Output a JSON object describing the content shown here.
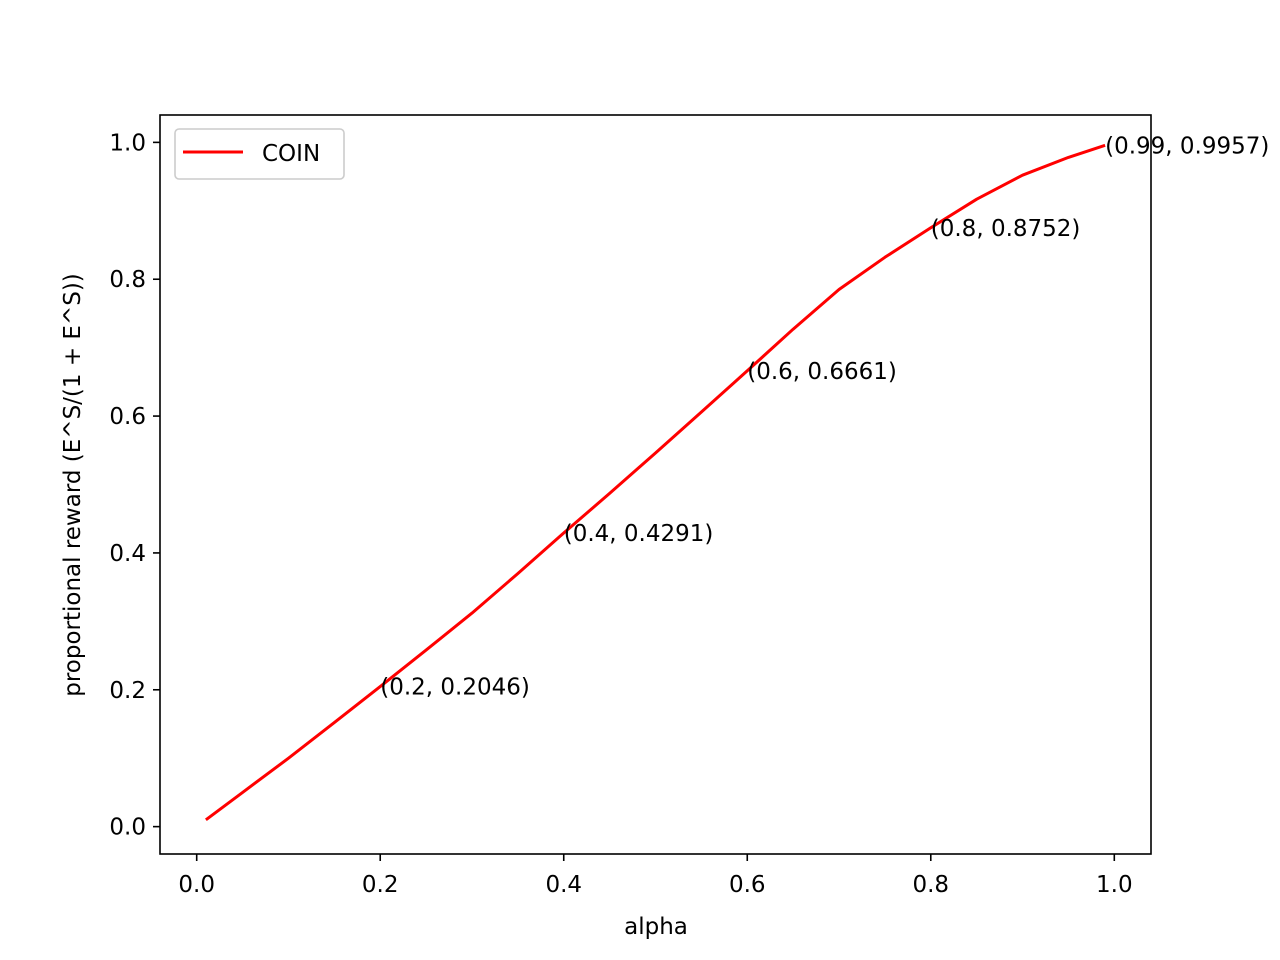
{
  "chart_data": {
    "type": "line",
    "title": "",
    "xlabel": "alpha",
    "ylabel": "proportional reward (E^S/(1 + E^S))",
    "xlim": [
      -0.04,
      1.04
    ],
    "ylim": [
      -0.04,
      1.04
    ],
    "x_ticks": [
      0.0,
      0.2,
      0.4,
      0.6,
      0.8,
      1.0
    ],
    "x_tick_labels": [
      "0.0",
      "0.2",
      "0.4",
      "0.6",
      "0.8",
      "1.0"
    ],
    "y_ticks": [
      0.0,
      0.2,
      0.4,
      0.6,
      0.8,
      1.0
    ],
    "y_tick_labels": [
      "0.0",
      "0.2",
      "0.4",
      "0.6",
      "0.8",
      "1.0"
    ],
    "grid": false,
    "legend_position": "top-left",
    "series": [
      {
        "name": "COIN",
        "color": "#ff0000",
        "x": [
          0.01,
          0.05,
          0.1,
          0.15,
          0.2,
          0.25,
          0.3,
          0.35,
          0.4,
          0.45,
          0.5,
          0.55,
          0.6,
          0.65,
          0.7,
          0.75,
          0.8,
          0.85,
          0.9,
          0.95,
          0.99
        ],
        "y": [
          0.01,
          0.05,
          0.1,
          0.152,
          0.2046,
          0.258,
          0.312,
          0.37,
          0.4291,
          0.487,
          0.546,
          0.606,
          0.6661,
          0.727,
          0.785,
          0.832,
          0.8752,
          0.917,
          0.952,
          0.978,
          0.9957
        ]
      }
    ],
    "annotations": [
      {
        "x": 0.2,
        "y": 0.2046,
        "text": "(0.2, 0.2046)"
      },
      {
        "x": 0.4,
        "y": 0.4291,
        "text": "(0.4, 0.4291)"
      },
      {
        "x": 0.6,
        "y": 0.6661,
        "text": "(0.6, 0.6661)"
      },
      {
        "x": 0.8,
        "y": 0.8752,
        "text": "(0.8, 0.8752)"
      },
      {
        "x": 0.99,
        "y": 0.9957,
        "text": "(0.99, 0.9957)"
      }
    ]
  }
}
